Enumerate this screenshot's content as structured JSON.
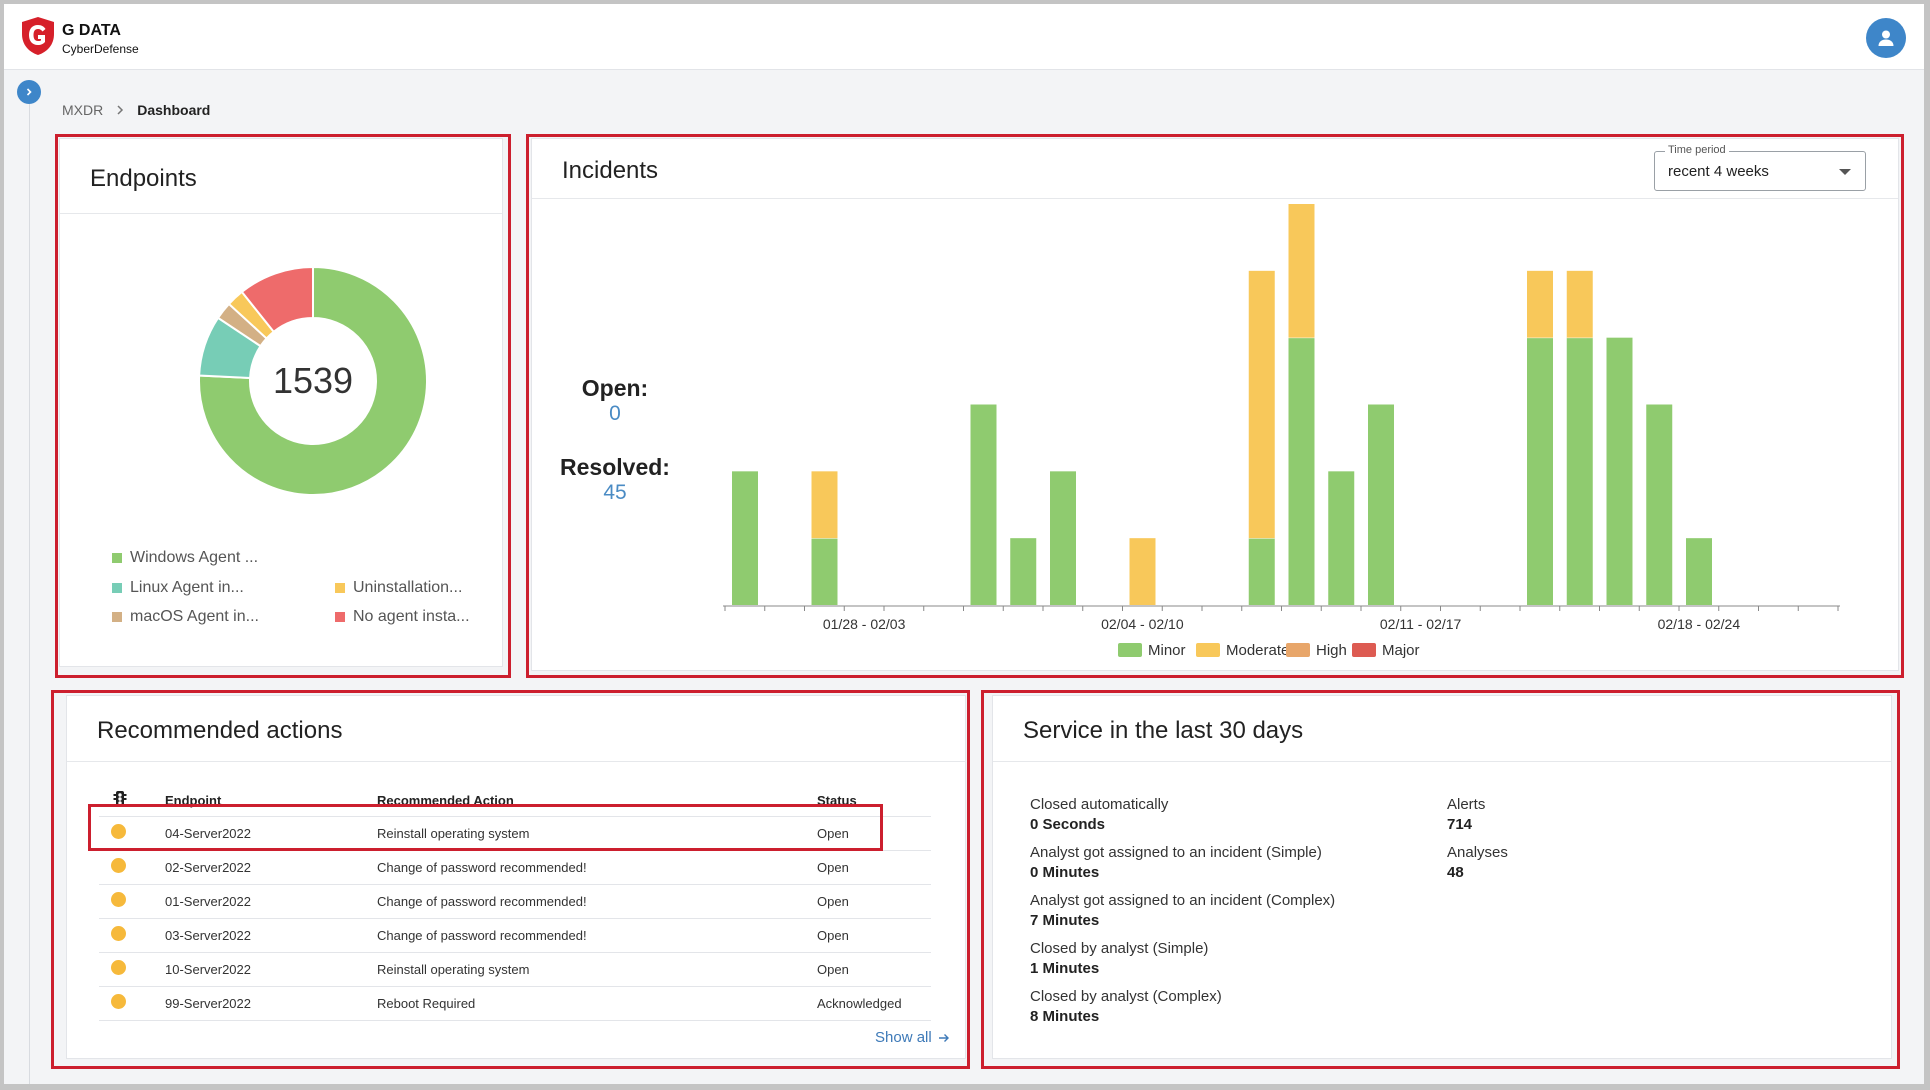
{
  "header": {
    "logo_title": "G DATA",
    "logo_subtitle": "CyberDefense",
    "avatar_icon": "user-icon",
    "brand_color": "#d6202a",
    "accent_color": "#3e86c9"
  },
  "breadcrumb": {
    "root": "MXDR",
    "current": "Dashboard"
  },
  "endpoints": {
    "title": "Endpoints",
    "total": "1539",
    "segments": [
      {
        "label": "Windows Agent ...",
        "value": 1166,
        "color": "#8fcb6f"
      },
      {
        "label": "Linux Agent in...",
        "value": 132,
        "color": "#77cdb6"
      },
      {
        "label": "macOS Agent in...",
        "value": 38,
        "color": "#d3b085"
      },
      {
        "label": "Uninstallation...",
        "value": 38,
        "color": "#f8c85a"
      },
      {
        "label": "No agent insta...",
        "value": 165,
        "color": "#ee6b6b"
      }
    ]
  },
  "incidents": {
    "title": "Incidents",
    "time_period_label": "Time period",
    "time_period_value": "recent 4 weeks",
    "open_label": "Open:",
    "open_value": "0",
    "resolved_label": "Resolved:",
    "resolved_value": "45"
  },
  "chart_data": {
    "type": "bar",
    "stacked": true,
    "x_tick_labels": [
      "01/28 - 02/03",
      "02/04 - 02/10",
      "02/11 - 02/17",
      "02/18 - 02/24"
    ],
    "days": 28,
    "ylim": [
      0,
      6
    ],
    "legend_position": "bottom",
    "series": [
      {
        "name": "Minor",
        "color": "#8fcb6f",
        "values": [
          2,
          0,
          1,
          0,
          0,
          0,
          3,
          1,
          2,
          0,
          0,
          0,
          0,
          1,
          4,
          2,
          3,
          0,
          0,
          0,
          4,
          4,
          4,
          3,
          1,
          0,
          0,
          0
        ]
      },
      {
        "name": "Moderate",
        "color": "#f8c85a",
        "values": [
          0,
          0,
          1,
          0,
          0,
          0,
          0,
          0,
          0,
          0,
          1,
          0,
          0,
          4,
          2,
          0,
          0,
          0,
          0,
          0,
          1,
          1,
          0,
          0,
          0,
          0,
          0,
          0
        ]
      },
      {
        "name": "High",
        "color": "#e8a66a",
        "values": [
          0,
          0,
          0,
          0,
          0,
          0,
          0,
          0,
          0,
          0,
          0,
          0,
          0,
          0,
          0,
          0,
          0,
          0,
          0,
          0,
          0,
          0,
          0,
          0,
          0,
          0,
          0,
          0
        ]
      },
      {
        "name": "Major",
        "color": "#dd5b52",
        "values": [
          0,
          0,
          0,
          0,
          0,
          0,
          0,
          0,
          0,
          0,
          0,
          0,
          0,
          0,
          0,
          0,
          0,
          0,
          0,
          0,
          0,
          0,
          0,
          0,
          0,
          0,
          0,
          0
        ]
      }
    ]
  },
  "recommended": {
    "title": "Recommended actions",
    "columns": {
      "priority_icon": "traffic-light-icon",
      "endpoint": "Endpoint",
      "action": "Recommended Action",
      "status": "Status"
    },
    "rows": [
      {
        "endpoint": "04-Server2022",
        "action": "Reinstall operating system",
        "status": "Open"
      },
      {
        "endpoint": "02-Server2022",
        "action": "Change of password recommended!",
        "status": "Open"
      },
      {
        "endpoint": "01-Server2022",
        "action": "Change of password recommended!",
        "status": "Open"
      },
      {
        "endpoint": "03-Server2022",
        "action": "Change of password recommended!",
        "status": "Open"
      },
      {
        "endpoint": "10-Server2022",
        "action": "Reinstall operating system",
        "status": "Open"
      },
      {
        "endpoint": "99-Server2022",
        "action": "Reboot Required",
        "status": "Acknowledged"
      }
    ],
    "show_all": "Show all"
  },
  "service": {
    "title": "Service in the last 30 days",
    "left": [
      {
        "label": "Closed automatically",
        "value": "0 Seconds"
      },
      {
        "label": "Analyst got assigned to an incident (Simple)",
        "value": "0 Minutes"
      },
      {
        "label": "Analyst got assigned to an incident (Complex)",
        "value": "7 Minutes"
      },
      {
        "label": "Closed by analyst (Simple)",
        "value": "1 Minutes"
      },
      {
        "label": "Closed by analyst (Complex)",
        "value": "8 Minutes"
      }
    ],
    "right": [
      {
        "label": "Alerts",
        "value": "714"
      },
      {
        "label": "Analyses",
        "value": "48"
      }
    ]
  }
}
